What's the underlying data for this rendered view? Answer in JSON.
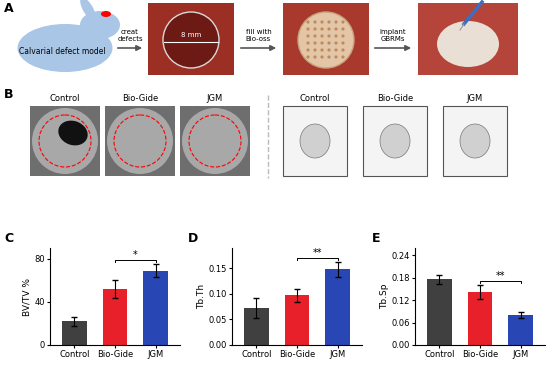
{
  "panel_a": {
    "label": "A",
    "model": "Calvarial defect model",
    "steps": [
      [
        "creat",
        "defects"
      ],
      [
        "fill with",
        "Bio-oss"
      ],
      [
        "implant",
        "GBRMs"
      ]
    ],
    "scale": "8 mm"
  },
  "panel_b": {
    "label": "B",
    "ct_2d": [
      "Control",
      "Bio-Gide",
      "JGM"
    ],
    "ct_3d": [
      "Control",
      "Bio-Gide",
      "JGM"
    ]
  },
  "chart_data": [
    {
      "panel_label": "C",
      "type": "bar",
      "y_label": "BV/TV %",
      "categories": [
        "Control",
        "Bio-Gide",
        "JGM"
      ],
      "values": [
        22,
        52,
        69
      ],
      "errors": [
        4,
        8,
        6
      ],
      "colors": [
        "#404040",
        "#e8202a",
        "#2846b4"
      ],
      "ylim": [
        0,
        90
      ],
      "yticks": [
        0,
        40,
        80
      ],
      "annotations": [
        {
          "from": "Bio-Gide",
          "to": "JGM",
          "text": "*"
        }
      ]
    },
    {
      "panel_label": "D",
      "type": "bar",
      "y_label": "Tb.Th",
      "categories": [
        "Control",
        "Bio-Gide",
        "JGM"
      ],
      "values": [
        0.073,
        0.097,
        0.148
      ],
      "errors": [
        0.02,
        0.012,
        0.015
      ],
      "colors": [
        "#404040",
        "#e8202a",
        "#2846b4"
      ],
      "ylim": [
        0,
        0.19
      ],
      "yticks": [
        {
          "value": 0,
          "label": "0.00"
        },
        {
          "value": 0.05,
          "label": "0.05"
        },
        {
          "value": 0.1,
          "label": "0.10"
        },
        {
          "value": 0.15,
          "label": "0.15"
        }
      ],
      "annotations": [
        {
          "from": "Bio-Gide",
          "to": "JGM",
          "text": "**"
        }
      ]
    },
    {
      "panel_label": "E",
      "type": "bar",
      "y_label": "Tb.Sp",
      "categories": [
        "Control",
        "Bio-Gide",
        "JGM"
      ],
      "values": [
        0.176,
        0.142,
        0.08
      ],
      "errors": [
        0.012,
        0.02,
        0.008
      ],
      "colors": [
        "#404040",
        "#e8202a",
        "#2846b4"
      ],
      "ylim": [
        0,
        0.26
      ],
      "yticks": [
        {
          "value": 0,
          "label": "0.00"
        },
        {
          "value": 0.06,
          "label": "0.06"
        },
        {
          "value": 0.12,
          "label": "0.12"
        },
        {
          "value": 0.18,
          "label": "0.18"
        },
        {
          "value": 0.24,
          "label": "0.24"
        }
      ],
      "annotations": [
        {
          "from": "Bio-Gide",
          "to": "JGM",
          "text": "**"
        }
      ]
    }
  ]
}
